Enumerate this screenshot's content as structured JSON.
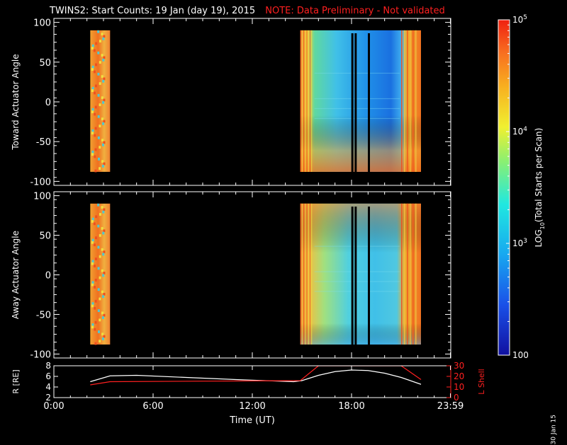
{
  "title": {
    "main": "TWINS2: Start Counts: 19 Jan (day  19), 2015",
    "note": "NOTE: Data Preliminary - Not validated"
  },
  "footer_date": "30 Jan 15",
  "colors": {
    "background": "#000000",
    "axis": "#ffffff",
    "note": "#ff2020",
    "r_trace": "#ffffff",
    "l_trace": "#ff2020"
  },
  "chart_data": [
    {
      "type": "heatmap",
      "name": "toward",
      "ylabel": "Toward Actuator Angle",
      "ylim": [
        -105,
        105
      ],
      "yticks": [
        -100,
        -50,
        0,
        50,
        100
      ],
      "xlim": [
        0,
        24
      ],
      "data_blocks": [
        {
          "t_start": 2.2,
          "t_end": 3.4,
          "angle_min": -88,
          "angle_max": 90,
          "log10_counts_approx": 4.7
        },
        {
          "t_start": 14.9,
          "t_end": 22.2,
          "angle_min": -88,
          "angle_max": 90,
          "log10_counts_approx": 3.3
        }
      ],
      "gaps_hours": [
        18.05,
        18.25,
        19.05
      ]
    },
    {
      "type": "heatmap",
      "name": "away",
      "ylabel": "Away Actuator Angle",
      "ylim": [
        -105,
        105
      ],
      "yticks": [
        -100,
        -50,
        0,
        50,
        100
      ],
      "xlim": [
        0,
        24
      ],
      "data_blocks": [
        {
          "t_start": 2.2,
          "t_end": 3.4,
          "angle_min": -88,
          "angle_max": 90,
          "log10_counts_approx": 4.8
        },
        {
          "t_start": 14.9,
          "t_end": 22.2,
          "angle_min": -88,
          "angle_max": 90,
          "log10_counts_approx": 3.6
        }
      ],
      "gaps_hours": [
        18.05,
        18.25,
        19.05
      ]
    },
    {
      "type": "line",
      "name": "ephemeris",
      "ylabel_left": "R [RE]",
      "ylabel_right": "L Shell",
      "xlabel": "Time (UT)",
      "xticks": [
        "0:00",
        "6:00",
        "12:00",
        "18:00",
        "23:59"
      ],
      "xtick_hours": [
        0,
        6,
        12,
        18,
        23.98
      ],
      "ylim_left": [
        2,
        8
      ],
      "yticks_left": [
        2,
        4,
        6,
        8
      ],
      "ylim_right": [
        0,
        30
      ],
      "yticks_right": [
        0,
        10,
        20,
        30
      ],
      "series": [
        {
          "name": "R",
          "axis": "left",
          "x": [
            2.2,
            3.4,
            5.0,
            8.0,
            11.0,
            14.5,
            15.0,
            16.0,
            17.0,
            18.0,
            19.0,
            20.0,
            21.0,
            22.2
          ],
          "y": [
            5.0,
            6.1,
            6.2,
            5.8,
            5.4,
            5.0,
            5.2,
            6.2,
            6.9,
            7.2,
            7.1,
            6.6,
            5.8,
            4.5
          ]
        },
        {
          "name": "L Shell",
          "axis": "right",
          "x": [
            2.2,
            3.4,
            14.9,
            16.0,
            21.0,
            22.2
          ],
          "y": [
            12,
            15,
            16,
            30,
            30,
            17
          ]
        }
      ]
    },
    {
      "type": "colorbar",
      "label": "LOG10(Total Starts per Scan)",
      "label_prefix": "LOG",
      "label_sub": "10",
      "label_suffix": "(Total Starts per Scan)",
      "range_log10": [
        2,
        5
      ],
      "ticks": [
        {
          "value": 5,
          "base": "10",
          "exp": "5"
        },
        {
          "value": 4,
          "base": "10",
          "exp": "4"
        },
        {
          "value": 3,
          "base": "10",
          "exp": "3"
        },
        {
          "value": 2,
          "base": "100",
          "exp": ""
        }
      ]
    }
  ]
}
